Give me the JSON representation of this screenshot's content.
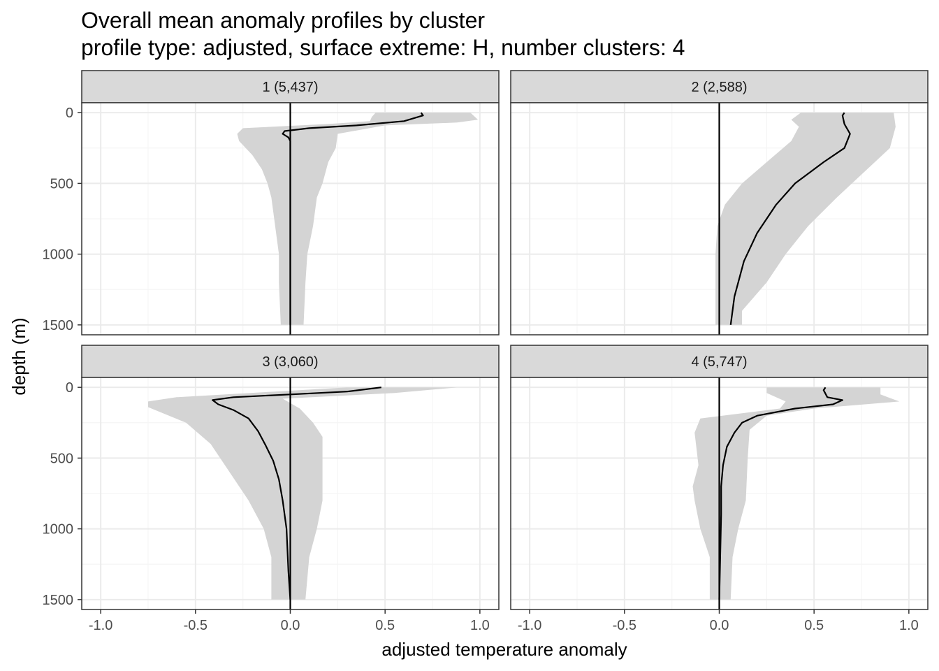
{
  "chart_data": {
    "type": "area",
    "title": "Overall mean anomaly profiles by cluster",
    "subtitle": "profile type: adjusted, surface extreme: H, number clusters: 4",
    "xlabel": "adjusted temperature anomaly",
    "ylabel": "depth (m)",
    "xlim": [
      -1.1,
      1.1
    ],
    "ylim": [
      1570,
      -70
    ],
    "x_ticks": [
      -1.0,
      -0.5,
      0.0,
      0.5,
      1.0
    ],
    "x_tick_labels": [
      "-1.0",
      "-0.5",
      "0.0",
      "0.5",
      "1.0"
    ],
    "y_ticks": [
      0,
      500,
      1000,
      1500
    ],
    "y_tick_labels": [
      "0",
      "500",
      "1000",
      "1500"
    ],
    "y_reversed": true,
    "grid": true,
    "vline_x": 0,
    "colors": {
      "ribbon": "#d4d4d4",
      "line": "#000000",
      "strip_fill": "#d9d9d9",
      "grid_major": "#ebebeb",
      "grid_minor": "#f5f5f5"
    },
    "panels": [
      {
        "label": "1 (5,437)",
        "mean": [
          [
            0.69,
            0
          ],
          [
            0.7,
            20
          ],
          [
            0.6,
            60
          ],
          [
            0.35,
            90
          ],
          [
            0.1,
            110
          ],
          [
            -0.03,
            130
          ],
          [
            -0.04,
            150
          ],
          [
            -0.01,
            175
          ],
          [
            0.0,
            200
          ],
          [
            0.0,
            300
          ],
          [
            0.0,
            600
          ],
          [
            0.0,
            1000
          ],
          [
            0.0,
            1500
          ]
        ],
        "lower": [
          [
            0.45,
            0
          ],
          [
            0.43,
            30
          ],
          [
            0.42,
            60
          ],
          [
            0.2,
            80
          ],
          [
            -0.25,
            110
          ],
          [
            -0.28,
            150
          ],
          [
            -0.27,
            200
          ],
          [
            -0.2,
            300
          ],
          [
            -0.15,
            400
          ],
          [
            -0.12,
            500
          ],
          [
            -0.1,
            600
          ],
          [
            -0.08,
            800
          ],
          [
            -0.06,
            1000
          ],
          [
            -0.06,
            1200
          ],
          [
            -0.05,
            1500
          ]
        ],
        "upper": [
          [
            0.95,
            0
          ],
          [
            0.99,
            50
          ],
          [
            0.88,
            70
          ],
          [
            0.5,
            90
          ],
          [
            0.25,
            150
          ],
          [
            0.24,
            250
          ],
          [
            0.2,
            350
          ],
          [
            0.17,
            500
          ],
          [
            0.14,
            600
          ],
          [
            0.12,
            800
          ],
          [
            0.09,
            1000
          ],
          [
            0.08,
            1200
          ],
          [
            0.07,
            1500
          ]
        ]
      },
      {
        "label": "2 (2,588)",
        "mean": [
          [
            0.66,
            0
          ],
          [
            0.65,
            20
          ],
          [
            0.66,
            80
          ],
          [
            0.69,
            150
          ],
          [
            0.66,
            250
          ],
          [
            0.55,
            350
          ],
          [
            0.4,
            500
          ],
          [
            0.3,
            650
          ],
          [
            0.2,
            850
          ],
          [
            0.13,
            1050
          ],
          [
            0.08,
            1300
          ],
          [
            0.06,
            1500
          ]
        ],
        "lower": [
          [
            0.43,
            0
          ],
          [
            0.38,
            50
          ],
          [
            0.42,
            100
          ],
          [
            0.38,
            200
          ],
          [
            0.25,
            350
          ],
          [
            0.12,
            500
          ],
          [
            0.03,
            650
          ],
          [
            -0.01,
            800
          ],
          [
            -0.02,
            1000
          ],
          [
            -0.02,
            1200
          ],
          [
            -0.02,
            1500
          ]
        ],
        "upper": [
          [
            0.92,
            0
          ],
          [
            0.93,
            100
          ],
          [
            0.9,
            250
          ],
          [
            0.78,
            400
          ],
          [
            0.62,
            600
          ],
          [
            0.47,
            800
          ],
          [
            0.35,
            1000
          ],
          [
            0.25,
            1200
          ],
          [
            0.12,
            1400
          ],
          [
            0.12,
            1500
          ]
        ]
      },
      {
        "label": "3 (3,060)",
        "mean": [
          [
            0.48,
            0
          ],
          [
            0.3,
            30
          ],
          [
            0.0,
            50
          ],
          [
            -0.3,
            70
          ],
          [
            -0.41,
            90
          ],
          [
            -0.38,
            120
          ],
          [
            -0.3,
            160
          ],
          [
            -0.22,
            220
          ],
          [
            -0.17,
            310
          ],
          [
            -0.13,
            410
          ],
          [
            -0.09,
            520
          ],
          [
            -0.06,
            650
          ],
          [
            -0.04,
            800
          ],
          [
            -0.02,
            1000
          ],
          [
            -0.01,
            1300
          ],
          [
            0.0,
            1500
          ]
        ],
        "lower": [
          [
            0.3,
            0
          ],
          [
            -0.08,
            30
          ],
          [
            -0.6,
            70
          ],
          [
            -0.75,
            100
          ],
          [
            -0.75,
            140
          ],
          [
            -0.55,
            250
          ],
          [
            -0.42,
            400
          ],
          [
            -0.32,
            600
          ],
          [
            -0.22,
            800
          ],
          [
            -0.14,
            1000
          ],
          [
            -0.1,
            1200
          ],
          [
            -0.1,
            1500
          ]
        ],
        "upper": [
          [
            0.88,
            0
          ],
          [
            0.55,
            40
          ],
          [
            -0.04,
            80
          ],
          [
            0.05,
            150
          ],
          [
            0.12,
            250
          ],
          [
            0.17,
            350
          ],
          [
            0.17,
            800
          ],
          [
            0.14,
            1000
          ],
          [
            0.1,
            1200
          ],
          [
            0.08,
            1500
          ]
        ]
      },
      {
        "label": "4 (5,747)",
        "mean": [
          [
            0.56,
            0
          ],
          [
            0.55,
            20
          ],
          [
            0.57,
            70
          ],
          [
            0.65,
            90
          ],
          [
            0.6,
            120
          ],
          [
            0.4,
            150
          ],
          [
            0.2,
            200
          ],
          [
            0.12,
            250
          ],
          [
            0.08,
            320
          ],
          [
            0.04,
            420
          ],
          [
            0.02,
            550
          ],
          [
            0.01,
            700
          ],
          [
            0.01,
            900
          ],
          [
            0.0,
            1500
          ]
        ],
        "lower": [
          [
            0.25,
            0
          ],
          [
            0.25,
            40
          ],
          [
            0.35,
            100
          ],
          [
            0.32,
            150
          ],
          [
            -0.1,
            220
          ],
          [
            -0.13,
            320
          ],
          [
            -0.11,
            550
          ],
          [
            -0.14,
            700
          ],
          [
            -0.13,
            800
          ],
          [
            -0.1,
            1000
          ],
          [
            -0.05,
            1200
          ],
          [
            -0.05,
            1500
          ]
        ],
        "upper": [
          [
            0.85,
            0
          ],
          [
            0.85,
            50
          ],
          [
            0.95,
            100
          ],
          [
            0.5,
            150
          ],
          [
            0.25,
            200
          ],
          [
            0.16,
            300
          ],
          [
            0.15,
            500
          ],
          [
            0.14,
            800
          ],
          [
            0.1,
            1000
          ],
          [
            0.07,
            1200
          ],
          [
            0.06,
            1500
          ]
        ]
      }
    ]
  }
}
